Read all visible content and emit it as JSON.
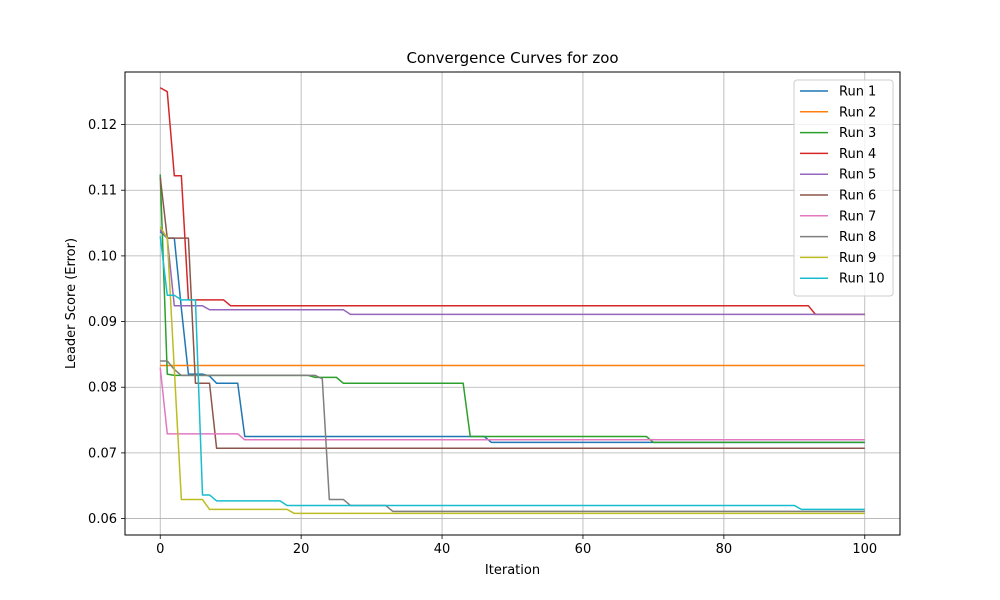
{
  "chart_data": {
    "type": "line",
    "title": "Convergence Curves for zoo",
    "xlabel": "Iteration",
    "ylabel": "Leader Score (Error)",
    "xlim": [
      -5,
      105
    ],
    "ylim": [
      0.0575,
      0.128
    ],
    "xticks": [
      0,
      20,
      40,
      60,
      80,
      100
    ],
    "yticks": [
      0.06,
      0.07,
      0.08,
      0.09,
      0.1,
      0.11,
      0.12
    ],
    "ytick_labels": [
      "0.06",
      "0.07",
      "0.08",
      "0.09",
      "0.10",
      "0.11",
      "0.12"
    ],
    "grid": true,
    "legend_position": "top-right",
    "series": [
      {
        "name": "Run 1",
        "color": "#1f77b4",
        "points": [
          [
            0,
            0.1037
          ],
          [
            1,
            0.1027
          ],
          [
            2,
            0.1027
          ],
          [
            3,
            0.092
          ],
          [
            4,
            0.082
          ],
          [
            5,
            0.082
          ],
          [
            6,
            0.082
          ],
          [
            7,
            0.0817
          ],
          [
            8,
            0.0806
          ],
          [
            11,
            0.0806
          ],
          [
            12,
            0.0725
          ],
          [
            46,
            0.0725
          ],
          [
            47,
            0.0716
          ],
          [
            100,
            0.0716
          ]
        ]
      },
      {
        "name": "Run 2",
        "color": "#ff7f0e",
        "points": [
          [
            0,
            0.0833
          ],
          [
            100,
            0.0833
          ]
        ]
      },
      {
        "name": "Run 3",
        "color": "#2ca02c",
        "points": [
          [
            0,
            0.1124
          ],
          [
            1,
            0.082
          ],
          [
            2,
            0.0818
          ],
          [
            21,
            0.0818
          ],
          [
            22,
            0.0815
          ],
          [
            25,
            0.0815
          ],
          [
            26,
            0.0806
          ],
          [
            43,
            0.0806
          ],
          [
            44,
            0.0725
          ],
          [
            69,
            0.0725
          ],
          [
            70,
            0.0716
          ],
          [
            100,
            0.0716
          ]
        ]
      },
      {
        "name": "Run 4",
        "color": "#d62728",
        "points": [
          [
            0,
            0.1256
          ],
          [
            1,
            0.125
          ],
          [
            2,
            0.1122
          ],
          [
            3,
            0.1122
          ],
          [
            4,
            0.0933
          ],
          [
            9,
            0.0933
          ],
          [
            10,
            0.0924
          ],
          [
            92,
            0.0924
          ],
          [
            93,
            0.0911
          ],
          [
            100,
            0.0911
          ]
        ]
      },
      {
        "name": "Run 5",
        "color": "#9467bd",
        "points": [
          [
            0,
            0.104
          ],
          [
            1,
            0.1027
          ],
          [
            2,
            0.0924
          ],
          [
            6,
            0.0924
          ],
          [
            7,
            0.0918
          ],
          [
            26,
            0.0918
          ],
          [
            27,
            0.0911
          ],
          [
            100,
            0.0911
          ]
        ]
      },
      {
        "name": "Run 6",
        "color": "#8c564b",
        "points": [
          [
            0,
            0.112
          ],
          [
            1,
            0.1027
          ],
          [
            3,
            0.1027
          ],
          [
            4,
            0.1027
          ],
          [
            5,
            0.0806
          ],
          [
            7,
            0.0806
          ],
          [
            8,
            0.0707
          ],
          [
            100,
            0.0707
          ]
        ]
      },
      {
        "name": "Run 7",
        "color": "#e377c2",
        "points": [
          [
            0,
            0.083
          ],
          [
            1,
            0.0729
          ],
          [
            11,
            0.0729
          ],
          [
            12,
            0.072
          ],
          [
            100,
            0.072
          ]
        ]
      },
      {
        "name": "Run 8",
        "color": "#7f7f7f",
        "points": [
          [
            0,
            0.084
          ],
          [
            1,
            0.084
          ],
          [
            2,
            0.0827
          ],
          [
            3,
            0.0818
          ],
          [
            22,
            0.0818
          ],
          [
            23,
            0.0813
          ],
          [
            24,
            0.0629
          ],
          [
            26,
            0.0629
          ],
          [
            27,
            0.062
          ],
          [
            32,
            0.062
          ],
          [
            33,
            0.0611
          ],
          [
            100,
            0.0611
          ]
        ]
      },
      {
        "name": "Run 9",
        "color": "#bcbd22",
        "points": [
          [
            0,
            0.1044
          ],
          [
            1,
            0.1027
          ],
          [
            2,
            0.0827
          ],
          [
            3,
            0.0629
          ],
          [
            6,
            0.0629
          ],
          [
            7,
            0.0614
          ],
          [
            18,
            0.0614
          ],
          [
            19,
            0.0608
          ],
          [
            100,
            0.0608
          ]
        ]
      },
      {
        "name": "Run 10",
        "color": "#17becf",
        "points": [
          [
            0,
            0.103
          ],
          [
            1,
            0.094
          ],
          [
            2,
            0.094
          ],
          [
            3,
            0.0933
          ],
          [
            5,
            0.0933
          ],
          [
            6,
            0.0636
          ],
          [
            7,
            0.0636
          ],
          [
            8,
            0.0627
          ],
          [
            17,
            0.0627
          ],
          [
            18,
            0.062
          ],
          [
            90,
            0.062
          ],
          [
            91,
            0.0614
          ],
          [
            100,
            0.0614
          ]
        ]
      }
    ]
  }
}
